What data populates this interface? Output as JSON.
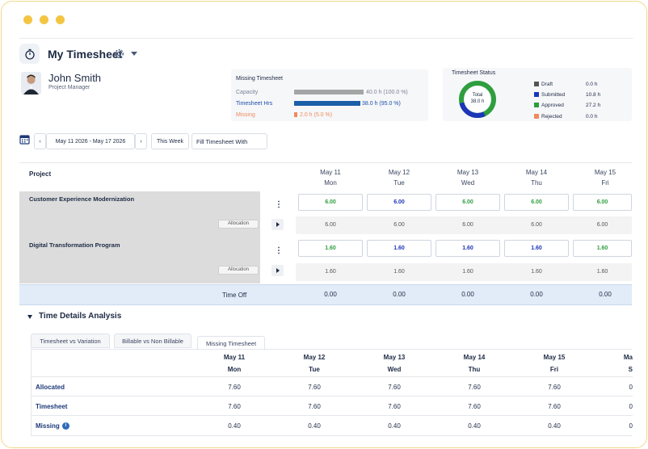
{
  "colors": {
    "accent": "#1d3a7a",
    "green": "#2e9e3e",
    "blue": "#1b36b8",
    "draft": "#555555",
    "rejected": "#f08a5d",
    "capacity": "#a5a5a5",
    "timesheet_bar": "#1b5fa8",
    "missing_bar": "#f08a5d"
  },
  "header": {
    "title": "My Timesheet",
    "icon": "stopwatch-icon"
  },
  "user": {
    "name": "John Smith",
    "role": "Project Manager"
  },
  "missing": {
    "title": "Missing Timesheet",
    "rows": [
      {
        "label": "Capacity",
        "value": "40.0 h (100.0 %)",
        "fraction": 1.0
      },
      {
        "label": "Timesheet Hrs",
        "value": "38.0 h (95.0 %)",
        "fraction": 0.95
      },
      {
        "label": "Missing",
        "value": "2.0 h (5.0 %)",
        "fraction": 0.05
      }
    ]
  },
  "status": {
    "title": "Timesheet Status",
    "donut_label": "Total",
    "donut_value": "38.0 h",
    "legend": [
      {
        "label": "Draft",
        "value": "0.0 h"
      },
      {
        "label": "Submitted",
        "value": "10.8 h"
      },
      {
        "label": "Approved",
        "value": "27.2 h"
      },
      {
        "label": "Rejected",
        "value": "0.0 h"
      }
    ]
  },
  "toolbar": {
    "date_range": "May 11 2026 - May 17 2026",
    "this_week": "This Week",
    "fill_with": "Fill Timesheet With",
    "prev": "‹",
    "next": "›"
  },
  "grid": {
    "project_header": "Project",
    "days": [
      {
        "date": "May 11",
        "day": "Mon"
      },
      {
        "date": "May 12",
        "day": "Tue"
      },
      {
        "date": "May 13",
        "day": "Wed"
      },
      {
        "date": "May 14",
        "day": "Thu"
      },
      {
        "date": "May 15",
        "day": "Fri"
      }
    ],
    "projects": [
      {
        "name": "Customer Experience Modernization",
        "allocation_label": "Allocation",
        "hours": [
          "6.00",
          "6.00",
          "6.00",
          "6.00",
          "6.00"
        ],
        "allocation": [
          "6.00",
          "6.00",
          "6.00",
          "6.00",
          "6.00"
        ]
      },
      {
        "name": "Digital Transformation Program",
        "allocation_label": "Allocation",
        "hours": [
          "1.60",
          "1.60",
          "1.60",
          "1.60",
          "1.60"
        ],
        "allocation": [
          "1.60",
          "1.60",
          "1.60",
          "1.60",
          "1.60"
        ]
      }
    ],
    "time_off_label": "Time Off",
    "time_off": [
      "0.00",
      "0.00",
      "0.00",
      "0.00",
      "0.00"
    ]
  },
  "analysis": {
    "title": "Time Details Analysis",
    "tabs": [
      "Timesheet vs Variation",
      "Billable vs Non Billable",
      "Missing Timesheet"
    ],
    "active_tab": 2,
    "days": [
      {
        "date": "May 11",
        "day": "Mon"
      },
      {
        "date": "May 12",
        "day": "Tue"
      },
      {
        "date": "May 13",
        "day": "Wed"
      },
      {
        "date": "May 14",
        "day": "Thu"
      },
      {
        "date": "May 15",
        "day": "Fri"
      },
      {
        "date": "Ma",
        "day": "S"
      }
    ],
    "rows": [
      {
        "label": "Allocated",
        "values": [
          "7.60",
          "7.60",
          "7.60",
          "7.60",
          "7.60",
          "0"
        ]
      },
      {
        "label": "Timesheet",
        "values": [
          "7.60",
          "7.60",
          "7.60",
          "7.60",
          "7.60",
          "0"
        ]
      },
      {
        "label": "Missing",
        "values": [
          "0.40",
          "0.40",
          "0.40",
          "0.40",
          "0.40",
          "0"
        ]
      }
    ]
  }
}
